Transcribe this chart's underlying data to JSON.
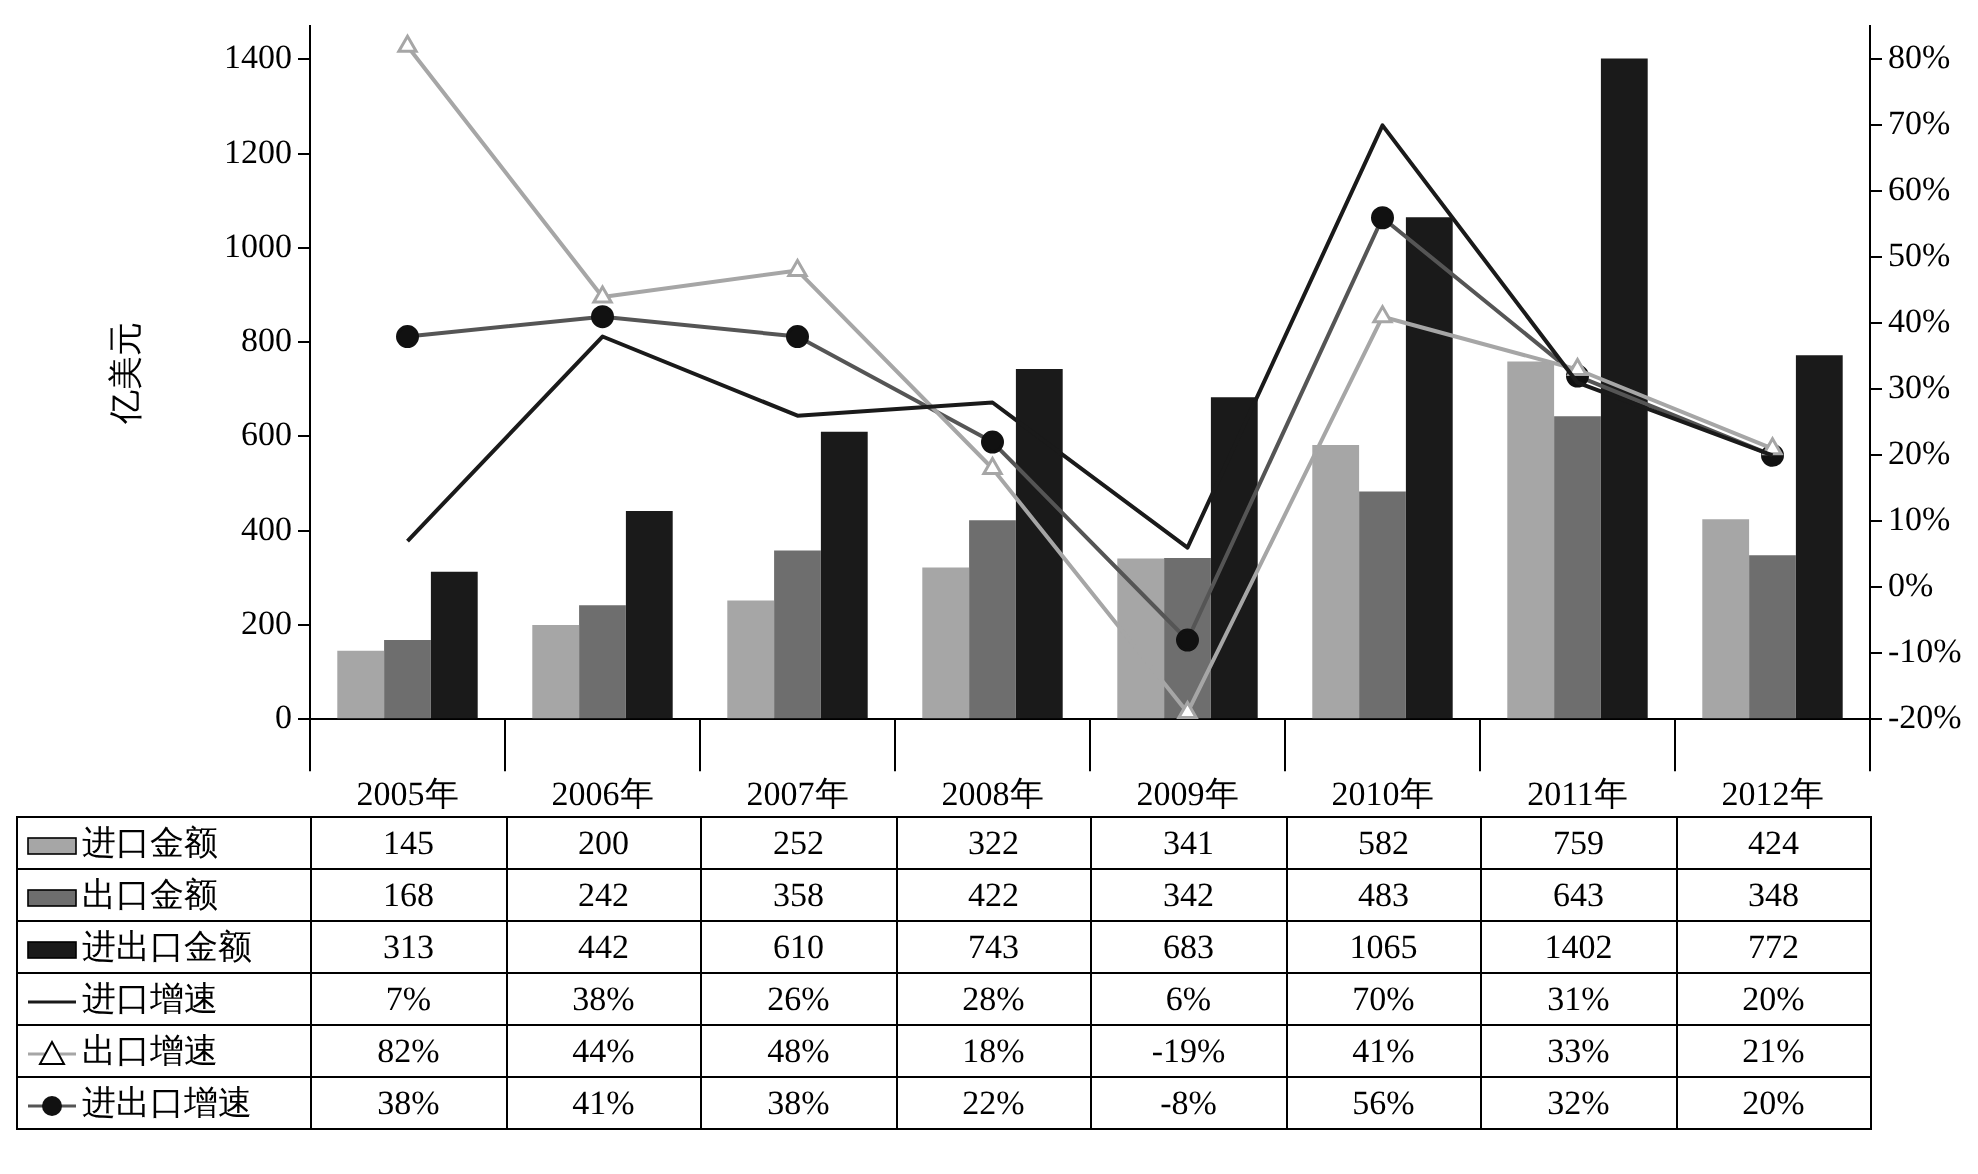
{
  "chart_data": {
    "type": "bar",
    "ylabel": "亿美元",
    "categories": [
      "2005年",
      "2006年",
      "2007年",
      "2008年",
      "2009年",
      "2010年",
      "2011年",
      "2012年"
    ],
    "series": [
      {
        "name": "进口金额",
        "color": "#a6a6a6",
        "values": [
          145,
          200,
          252,
          322,
          341,
          582,
          759,
          424
        ],
        "value_labels": [
          "145",
          "200",
          "252",
          "322",
          "341",
          "582",
          "759",
          "424"
        ]
      },
      {
        "name": "出口金额",
        "color": "#6e6e6e",
        "values": [
          168,
          242,
          358,
          422,
          342,
          483,
          643,
          348
        ],
        "value_labels": [
          "168",
          "242",
          "358",
          "422",
          "342",
          "483",
          "643",
          "348"
        ]
      },
      {
        "name": "进出口金额",
        "color": "#1a1a1a",
        "values": [
          313,
          442,
          610,
          743,
          683,
          1065,
          1402,
          772
        ],
        "value_labels": [
          "313",
          "442",
          "610",
          "743",
          "683",
          "1065",
          "1402",
          "772"
        ]
      },
      {
        "name": "进口增速",
        "type": "line",
        "axis": "y2",
        "marker": "none",
        "color": "#1a1a1a",
        "values": [
          7,
          38,
          26,
          28,
          6,
          70,
          31,
          20
        ],
        "value_labels": [
          "7%",
          "38%",
          "26%",
          "28%",
          "6%",
          "70%",
          "31%",
          "20%"
        ]
      },
      {
        "name": "出口增速",
        "type": "line",
        "axis": "y2",
        "marker": "triangle",
        "color": "#a6a6a6",
        "values": [
          82,
          44,
          48,
          18,
          -19,
          41,
          33,
          21
        ],
        "value_labels": [
          "82%",
          "44%",
          "48%",
          "18%",
          "-19%",
          "41%",
          "33%",
          "21%"
        ]
      },
      {
        "name": "进出口增速",
        "type": "line",
        "axis": "y2",
        "marker": "circle",
        "color": "#555555",
        "values": [
          38,
          41,
          38,
          22,
          -8,
          56,
          32,
          20
        ],
        "value_labels": [
          "38%",
          "41%",
          "38%",
          "22%",
          "-8%",
          "56%",
          "32%",
          "20%"
        ]
      }
    ],
    "ylim": [
      0,
      1470
    ],
    "yticks": [
      0,
      200,
      400,
      600,
      800,
      1000,
      1200,
      1400
    ],
    "y2lim": [
      -20,
      85
    ],
    "y2ticks": [
      {
        "value": -20,
        "label": "-20%"
      },
      {
        "value": -10,
        "label": "-10%"
      },
      {
        "value": 0,
        "label": "0%"
      },
      {
        "value": 10,
        "label": "10%"
      },
      {
        "value": 20,
        "label": "20%"
      },
      {
        "value": 30,
        "label": "30%"
      },
      {
        "value": 40,
        "label": "40%"
      },
      {
        "value": 50,
        "label": "50%"
      },
      {
        "value": 60,
        "label": "60%"
      },
      {
        "value": 70,
        "label": "70%"
      },
      {
        "value": 80,
        "label": "80%"
      }
    ],
    "grid": false,
    "legend": "bottom"
  }
}
